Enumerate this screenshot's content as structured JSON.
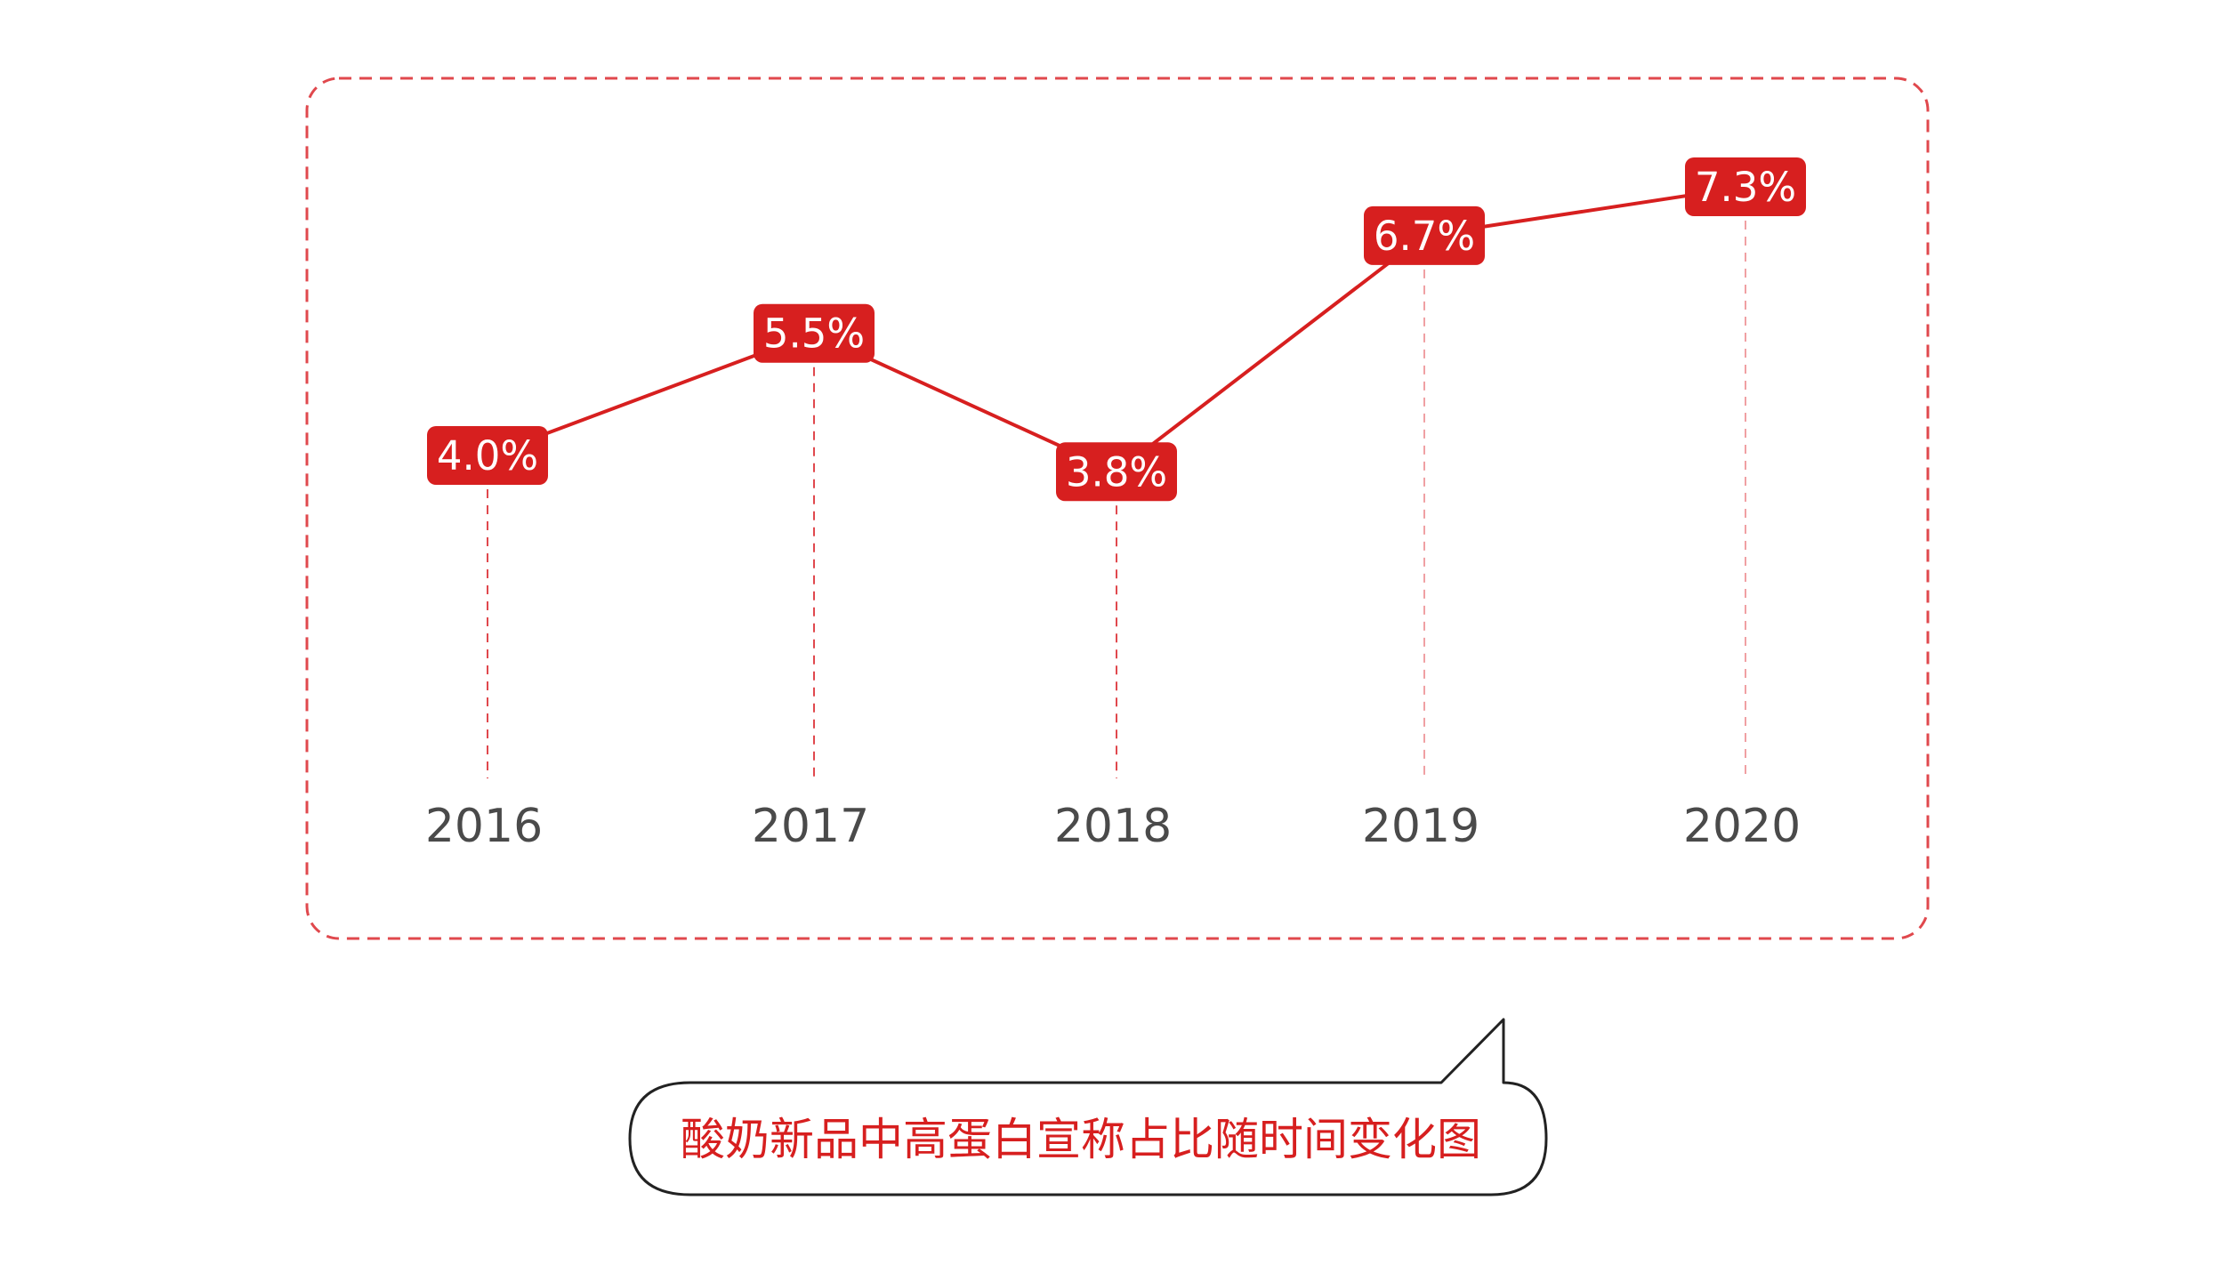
{
  "colors": {
    "accent": "#d71f1f",
    "frame": "#e0484d",
    "guide": "#f0a0a3",
    "axis_text": "#4a4a4a",
    "label_text": "#ffffff",
    "bubble_border": "#222222"
  },
  "chart_data": {
    "type": "line",
    "categories": [
      "2016",
      "2017",
      "2018",
      "2019",
      "2020"
    ],
    "values": [
      4.0,
      5.5,
      3.8,
      6.7,
      7.3
    ],
    "value_labels": [
      "4.0%",
      "5.5%",
      "3.8%",
      "6.7%",
      "7.3%"
    ],
    "ylim": [
      0,
      8
    ],
    "unit": "%",
    "grid": false,
    "legend": "none"
  },
  "caption": {
    "text": "酸奶新品中高蛋白宣称占比随时间变化图"
  }
}
